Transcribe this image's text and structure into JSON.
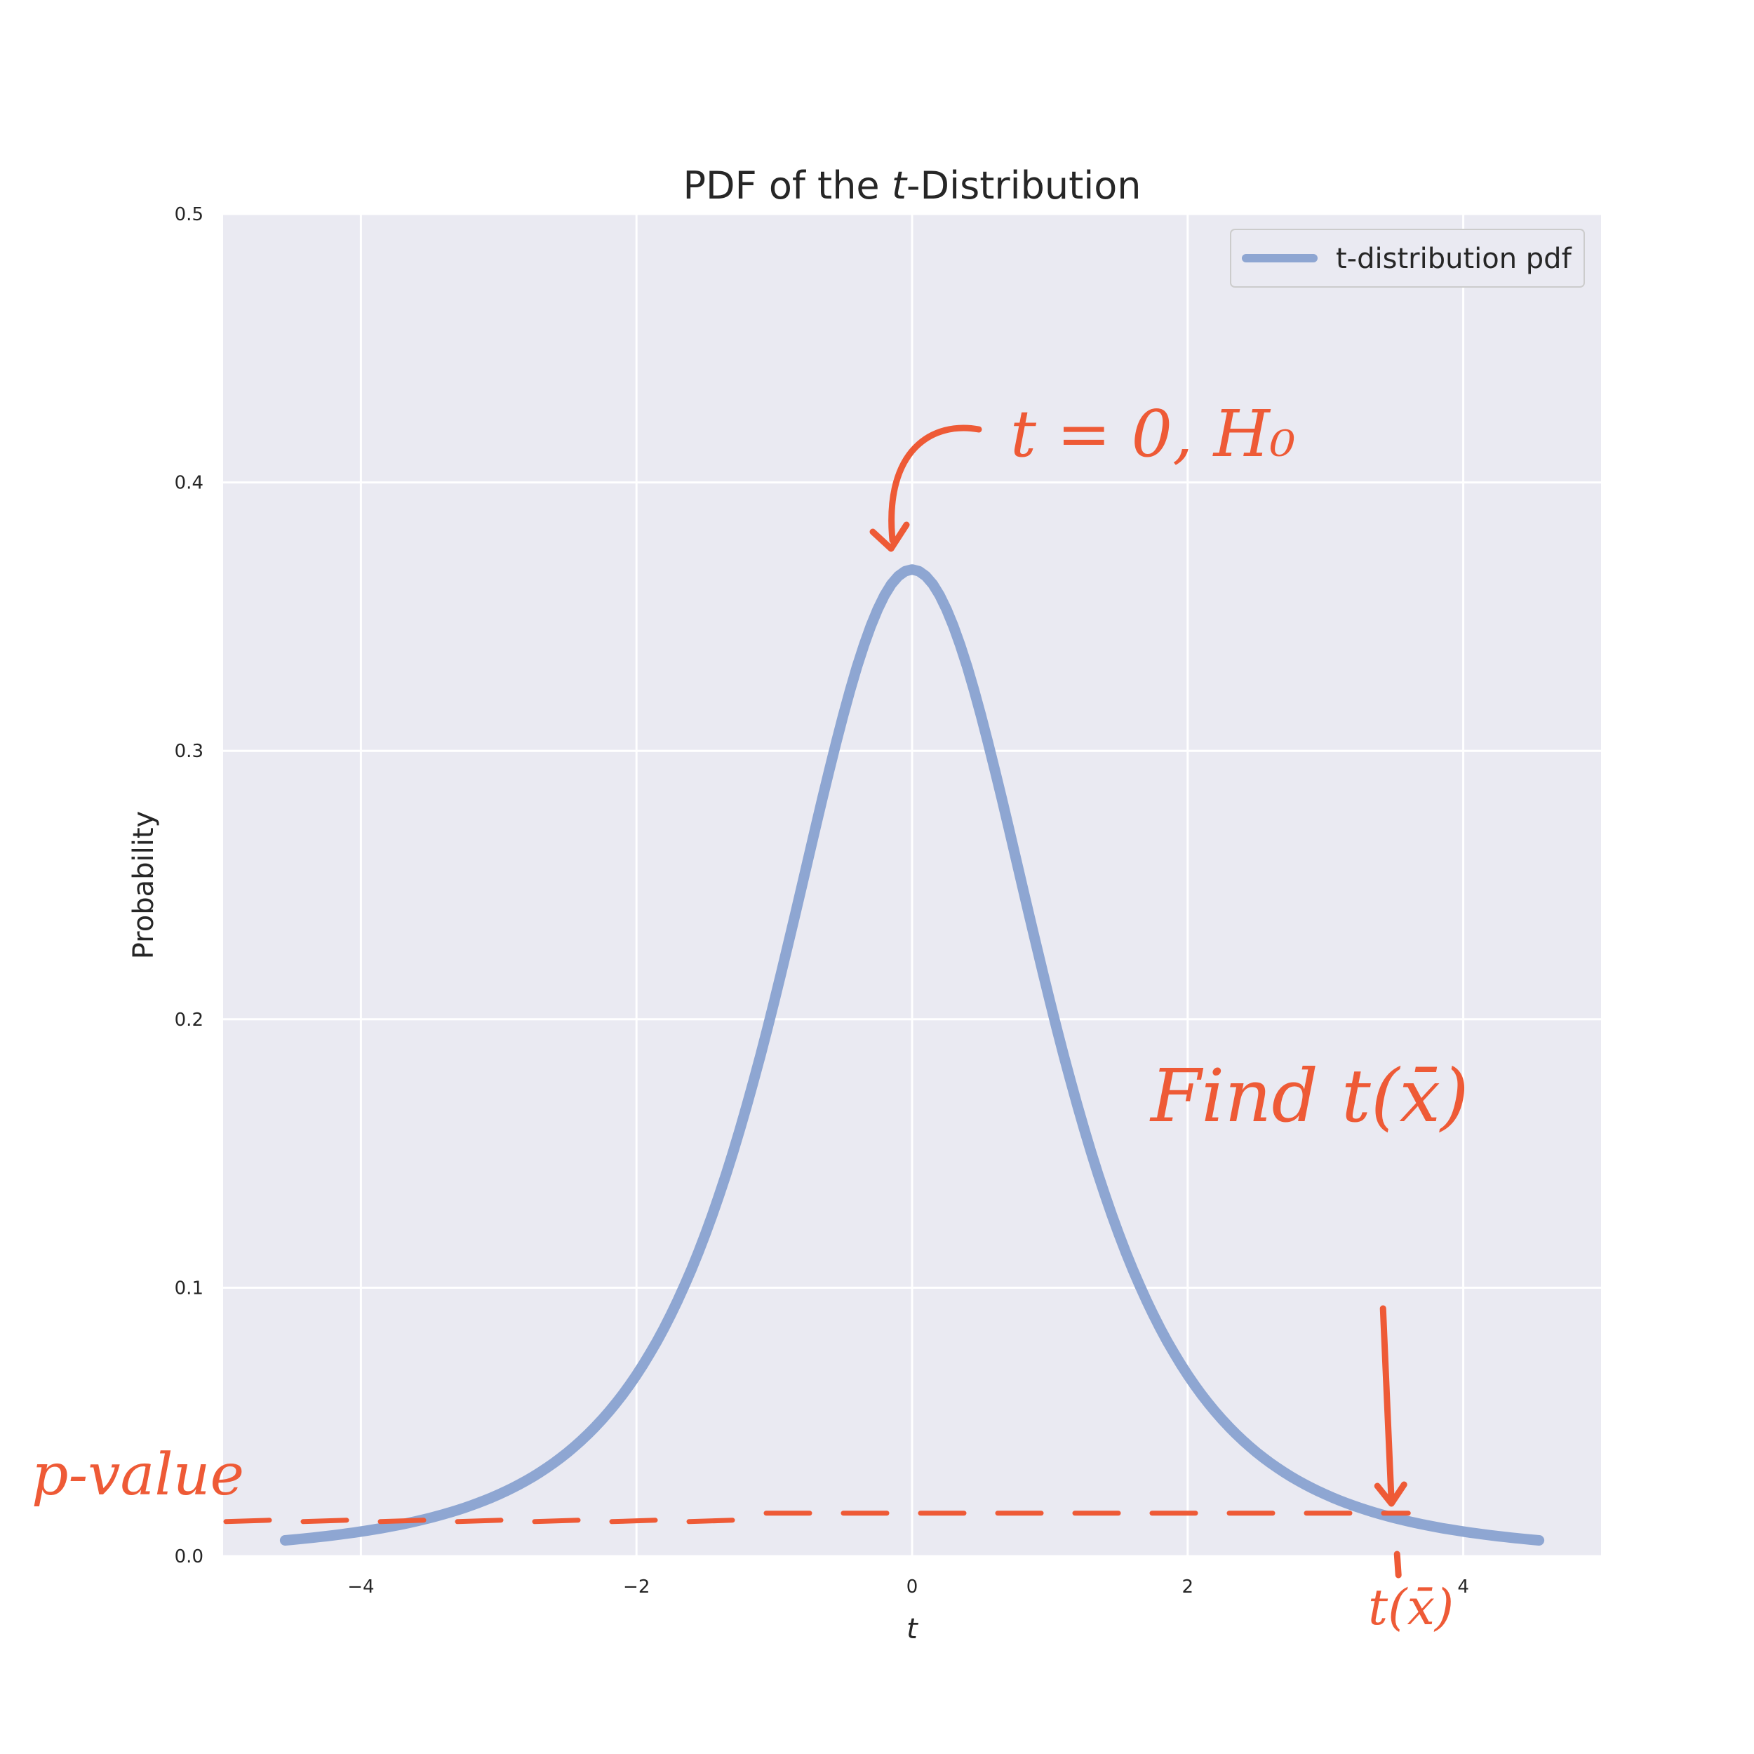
{
  "chart_data": {
    "type": "line",
    "title_prefix": "PDF of the ",
    "title_italic": "t",
    "title_suffix": "-Distribution",
    "xlabel": "t",
    "ylabel": "Probability",
    "xlim": [
      -5,
      5
    ],
    "ylim": [
      0,
      0.5
    ],
    "xticks": [
      -4,
      -2,
      0,
      2,
      4
    ],
    "xtick_labels": [
      "−4",
      "−2",
      "0",
      "2",
      "4"
    ],
    "yticks": [
      0.0,
      0.1,
      0.2,
      0.3,
      0.4,
      0.5
    ],
    "ytick_labels": [
      "0.0",
      "0.1",
      "0.2",
      "0.3",
      "0.4",
      "0.5"
    ],
    "grid": true,
    "legend_position": "top-right",
    "series": [
      {
        "name": "t-distribution pdf",
        "color": "#8ea6d2",
        "x_range": [
          -4.55,
          4.55
        ],
        "x": [
          -4.5,
          -4,
          -3.5,
          -3,
          -2.5,
          -2,
          -1.5,
          -1,
          -0.5,
          0,
          0.5,
          1,
          1.5,
          2,
          2.5,
          3,
          3.5,
          4,
          4.5
        ],
        "y": [
          0.006,
          0.009,
          0.014,
          0.024,
          0.041,
          0.068,
          0.115,
          0.193,
          0.296,
          0.367,
          0.296,
          0.193,
          0.115,
          0.068,
          0.041,
          0.024,
          0.014,
          0.009,
          0.006
        ]
      }
    ],
    "annotations": {
      "color": "#ee5a36",
      "peak_note": "t = 0, H₀",
      "find_note": "Find t(x̄)",
      "pvalue_note": "p-value",
      "tx_note": "t(x̄)",
      "t_marker_x": 3.55,
      "pvalue_level": 0.016
    }
  }
}
